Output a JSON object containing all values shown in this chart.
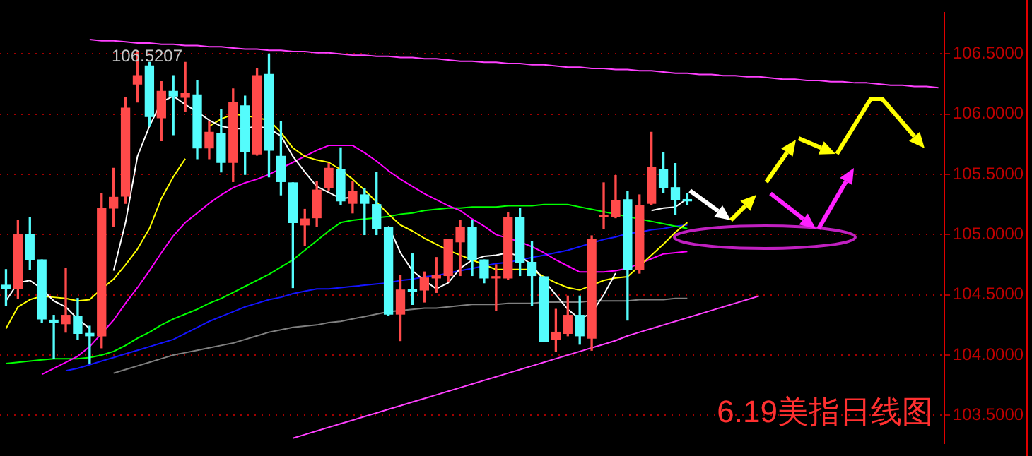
{
  "chart_data": {
    "type": "candlestick",
    "title": "6.19美指日线图",
    "categories": [
      null,
      null,
      null,
      null,
      null,
      null,
      null,
      null,
      null,
      null,
      null,
      null,
      null,
      null,
      null,
      null,
      null,
      null,
      null,
      null,
      null,
      null,
      null,
      null,
      null,
      null,
      null,
      null,
      null,
      null,
      null,
      null,
      null,
      null,
      null,
      null,
      null,
      null,
      null,
      null,
      null,
      null,
      null,
      null,
      null,
      null,
      null,
      null,
      null,
      null,
      null,
      null,
      null,
      null,
      null,
      null,
      null,
      null,
      null,
      null,
      null,
      null,
      null,
      null,
      null,
      null,
      null,
      null,
      null,
      null,
      null,
      null,
      null,
      null,
      null,
      null,
      null,
      null,
      null
    ],
    "ohlc": [
      [
        104.58,
        104.71,
        104.41,
        104.55
      ],
      [
        104.55,
        105.12,
        104.47,
        105.0
      ],
      [
        105.0,
        105.14,
        104.71,
        104.79
      ],
      [
        104.79,
        104.79,
        104.27,
        104.3
      ],
      [
        104.29,
        104.33,
        103.97,
        104.27
      ],
      [
        104.26,
        104.72,
        104.19,
        104.33
      ],
      [
        104.32,
        104.47,
        104.13,
        104.18
      ],
      [
        104.18,
        104.24,
        103.93,
        104.16
      ],
      [
        104.16,
        105.34,
        104.06,
        105.22
      ],
      [
        105.22,
        105.55,
        105.07,
        105.31
      ],
      [
        105.32,
        106.14,
        105.26,
        106.05
      ],
      [
        106.25,
        106.5207,
        106.1,
        106.32
      ],
      [
        106.4,
        106.43,
        105.9,
        105.98
      ],
      [
        105.97,
        106.27,
        105.78,
        106.19
      ],
      [
        106.19,
        106.32,
        105.83,
        106.15
      ],
      [
        106.14,
        106.43,
        106.02,
        106.17
      ],
      [
        106.16,
        106.28,
        105.63,
        105.72
      ],
      [
        105.72,
        105.94,
        105.63,
        105.85
      ],
      [
        105.84,
        106.04,
        105.52,
        105.6
      ],
      [
        105.6,
        106.21,
        105.44,
        106.1
      ],
      [
        106.07,
        106.15,
        105.5,
        105.69
      ],
      [
        105.67,
        106.38,
        105.66,
        106.32
      ],
      [
        106.33,
        106.5,
        105.48,
        105.7
      ],
      [
        105.65,
        105.94,
        105.33,
        105.44
      ],
      [
        105.43,
        105.43,
        104.56,
        105.1
      ],
      [
        105.08,
        105.21,
        104.91,
        105.13
      ],
      [
        105.14,
        105.44,
        105.07,
        105.37
      ],
      [
        105.39,
        105.59,
        105.37,
        105.55
      ],
      [
        105.54,
        105.72,
        105.25,
        105.28
      ],
      [
        105.26,
        105.44,
        105.18,
        105.36
      ],
      [
        105.33,
        105.38,
        105.0,
        105.26
      ],
      [
        105.25,
        105.52,
        105.0,
        105.05
      ],
      [
        105.06,
        105.06,
        104.33,
        104.34
      ],
      [
        104.34,
        104.66,
        104.12,
        104.54
      ],
      [
        104.54,
        104.84,
        104.42,
        104.53
      ],
      [
        104.54,
        104.69,
        104.44,
        104.64
      ],
      [
        104.64,
        104.81,
        104.52,
        104.66
      ],
      [
        104.66,
        104.96,
        104.61,
        104.96
      ],
      [
        104.94,
        105.12,
        104.66,
        105.06
      ],
      [
        105.06,
        105.12,
        104.66,
        104.79
      ],
      [
        104.79,
        104.79,
        104.6,
        104.64
      ],
      [
        104.64,
        104.75,
        104.37,
        104.65
      ],
      [
        104.64,
        105.18,
        104.63,
        105.14
      ],
      [
        105.14,
        105.22,
        104.66,
        104.77
      ],
      [
        104.77,
        104.94,
        104.41,
        104.66
      ],
      [
        104.65,
        104.65,
        104.11,
        104.11
      ],
      [
        104.13,
        104.38,
        104.03,
        104.19
      ],
      [
        104.18,
        104.49,
        104.16,
        104.33
      ],
      [
        104.33,
        104.49,
        104.09,
        104.16
      ],
      [
        104.14,
        104.99,
        104.04,
        104.96
      ],
      [
        105.15,
        105.43,
        105.05,
        105.16
      ],
      [
        105.15,
        105.49,
        105.14,
        105.28
      ],
      [
        105.29,
        105.36,
        104.29,
        104.71
      ],
      [
        104.71,
        105.33,
        104.68,
        105.24
      ],
      [
        105.26,
        105.85,
        105.25,
        105.56
      ],
      [
        105.54,
        105.68,
        105.35,
        105.39
      ],
      [
        105.39,
        105.59,
        105.17,
        105.29
      ],
      [
        105.29,
        105.34,
        105.25,
        105.28
      ],
      null,
      null,
      null,
      null,
      null,
      null,
      null,
      null,
      null,
      null,
      null,
      null,
      null,
      null,
      null,
      null,
      null,
      null,
      null,
      null,
      null
    ],
    "colors": [
      "#54fcfc",
      "#ff4a4a",
      "#54fcfc",
      "#54fcfc",
      "#54fcfc",
      "#ff4a4a",
      "#54fcfc",
      "#54fcfc",
      "#ff4a4a",
      "#ff4a4a",
      "#ff4a4a",
      "#ff4a4a",
      "#54fcfc",
      "#ff4a4a",
      "#54fcfc",
      "#ff4a4a",
      "#54fcfc",
      "#ff4a4a",
      "#54fcfc",
      "#ff4a4a",
      "#54fcfc",
      "#ff4a4a",
      "#54fcfc",
      "#54fcfc",
      "#54fcfc",
      "#ff4a4a",
      "#ff4a4a",
      "#ff4a4a",
      "#54fcfc",
      "#ff4a4a",
      "#54fcfc",
      "#54fcfc",
      "#54fcfc",
      "#ff4a4a",
      "#54fcfc",
      "#ff4a4a",
      "#ff4a4a",
      "#ff4a4a",
      "#ff4a4a",
      "#54fcfc",
      "#54fcfc",
      "#ff4a4a",
      "#ff4a4a",
      "#54fcfc",
      "#54fcfc",
      "#54fcfc",
      "#ff4a4a",
      "#ff4a4a",
      "#54fcfc",
      "#ff4a4a",
      "#ff4a4a",
      "#ff4a4a",
      "#54fcfc",
      "#ff4a4a",
      "#ff4a4a",
      "#54fcfc",
      "#54fcfc",
      "#54fcfc",
      null,
      null,
      null,
      null,
      null,
      null,
      null,
      null,
      null,
      null,
      null,
      null,
      null,
      null,
      null,
      null,
      null,
      null,
      null,
      null,
      null
    ],
    "series": [
      {
        "type": "line",
        "color": "#ffffff",
        "values": [
          104.45,
          104.6,
          104.62,
          104.55,
          104.45,
          104.4,
          104.3,
          104.22,
          null,
          104.7,
          105.1,
          105.65,
          105.9,
          106.1,
          106.15,
          106.08,
          106.02,
          105.95,
          105.9,
          105.88,
          105.88,
          105.9,
          105.88,
          105.82,
          105.65,
          105.52,
          105.4,
          105.35,
          105.3,
          105.31,
          null,
          null,
          105.07,
          104.85,
          104.7,
          104.62,
          104.55,
          104.6,
          104.72,
          104.79,
          104.82,
          104.83,
          104.85,
          104.82,
          104.75,
          104.62,
          104.5,
          104.38,
          104.3,
          104.35,
          104.5,
          104.68,
          null,
          null,
          105.2,
          105.22,
          105.23,
          105.3,
          null,
          null,
          null,
          null,
          null,
          null,
          null,
          null,
          null,
          null,
          null,
          null,
          null,
          null,
          null,
          null,
          null,
          null,
          null,
          null,
          null
        ]
      },
      {
        "type": "line",
        "color": "#ffff00",
        "values": [
          104.22,
          104.4,
          104.46,
          104.49,
          104.48,
          104.47,
          104.45,
          104.46,
          104.55,
          104.63,
          104.75,
          104.88,
          105.05,
          105.3,
          105.48,
          105.63,
          null,
          105.9,
          105.96,
          106.0,
          105.99,
          105.97,
          105.95,
          105.85,
          105.72,
          105.65,
          105.62,
          105.6,
          105.54,
          105.46,
          105.37,
          105.27,
          105.17,
          105.08,
          105.03,
          104.97,
          104.92,
          104.87,
          104.83,
          104.79,
          104.75,
          104.71,
          104.71,
          104.71,
          104.71,
          104.65,
          104.6,
          104.56,
          104.54,
          104.58,
          104.62,
          104.64,
          104.65,
          104.74,
          104.83,
          104.92,
          105.02,
          105.1,
          null,
          null,
          null,
          null,
          null,
          null,
          null,
          null,
          null,
          null,
          null,
          null,
          null,
          null,
          null,
          null,
          null,
          null,
          null,
          null,
          null
        ]
      },
      {
        "type": "line",
        "color": "#ff00ff",
        "values": [
          null,
          null,
          null,
          103.84,
          103.89,
          103.94,
          103.99,
          104.07,
          104.18,
          104.29,
          104.43,
          104.56,
          104.7,
          104.85,
          104.99,
          105.1,
          105.18,
          105.26,
          105.33,
          105.39,
          105.43,
          105.46,
          105.5,
          105.55,
          105.6,
          105.65,
          105.7,
          105.74,
          105.74,
          105.74,
          105.68,
          105.61,
          105.53,
          105.46,
          105.4,
          105.34,
          105.29,
          105.24,
          105.2,
          105.13,
          105.07,
          105.0,
          104.97,
          104.94,
          104.9,
          104.85,
          104.79,
          104.74,
          104.69,
          104.69,
          104.69,
          104.7,
          104.72,
          104.76,
          104.8,
          104.84,
          104.85,
          104.86,
          null,
          null,
          null,
          null,
          null,
          null,
          null,
          null,
          null,
          null,
          null,
          null,
          null,
          null,
          null,
          null,
          null,
          null,
          null,
          null,
          null
        ]
      },
      {
        "type": "line",
        "color": "#00ff00",
        "values": [
          103.93,
          103.94,
          103.95,
          103.96,
          103.97,
          103.97,
          103.97,
          103.98,
          104.0,
          104.03,
          104.08,
          104.14,
          104.19,
          104.25,
          104.3,
          104.34,
          104.38,
          104.43,
          104.47,
          104.52,
          104.57,
          104.62,
          104.67,
          104.73,
          104.79,
          104.87,
          104.95,
          105.03,
          105.1,
          105.12,
          105.13,
          105.14,
          105.15,
          105.17,
          105.18,
          105.2,
          105.21,
          105.22,
          105.22,
          105.23,
          105.23,
          105.23,
          105.24,
          105.24,
          105.24,
          105.25,
          105.25,
          105.25,
          105.23,
          105.21,
          105.19,
          105.17,
          105.15,
          105.13,
          105.11,
          105.09,
          105.07,
          105.05,
          null,
          null,
          null,
          null,
          null,
          null,
          null,
          null,
          null,
          null,
          null,
          null,
          null,
          null,
          null,
          null,
          null,
          null,
          null,
          null,
          null
        ]
      },
      {
        "type": "line",
        "color": "#1414ff",
        "values": [
          null,
          null,
          null,
          null,
          null,
          103.87,
          103.89,
          103.92,
          103.95,
          103.98,
          104.01,
          104.04,
          104.07,
          104.1,
          104.13,
          104.18,
          104.23,
          104.28,
          104.32,
          104.36,
          104.4,
          104.43,
          104.46,
          104.48,
          104.51,
          104.53,
          104.55,
          104.55,
          104.56,
          104.57,
          104.58,
          104.59,
          104.6,
          104.62,
          104.63,
          104.65,
          104.66,
          104.68,
          104.7,
          104.72,
          104.74,
          104.76,
          104.77,
          104.79,
          104.81,
          104.83,
          104.85,
          104.87,
          104.9,
          104.93,
          104.96,
          104.98,
          105.01,
          105.02,
          105.04,
          105.05,
          105.07,
          105.08,
          null,
          null,
          null,
          null,
          null,
          null,
          null,
          null,
          null,
          null,
          null,
          null,
          null,
          null,
          null,
          null,
          null,
          null,
          null,
          null,
          null
        ]
      },
      {
        "type": "line",
        "color": "#808080",
        "values": [
          null,
          null,
          null,
          null,
          null,
          null,
          null,
          null,
          null,
          103.85,
          103.88,
          103.91,
          103.94,
          103.97,
          104.0,
          104.02,
          104.04,
          104.06,
          104.08,
          104.1,
          104.13,
          104.16,
          104.19,
          104.21,
          104.23,
          104.24,
          104.25,
          104.27,
          104.28,
          104.3,
          104.32,
          104.34,
          104.36,
          104.37,
          104.38,
          104.39,
          104.39,
          104.4,
          104.41,
          104.42,
          104.42,
          104.42,
          104.43,
          104.43,
          104.43,
          104.44,
          104.44,
          104.44,
          104.44,
          104.45,
          104.45,
          104.45,
          104.45,
          104.46,
          104.46,
          104.46,
          104.47,
          104.47,
          null,
          null,
          null,
          null,
          null,
          null,
          null,
          null,
          null,
          null,
          null,
          null,
          null,
          null,
          null,
          null,
          null,
          null,
          null,
          null,
          null
        ]
      },
      {
        "type": "line",
        "color": "#ff40ff",
        "values": [
          null,
          null,
          null,
          null,
          null,
          null,
          null,
          106.62,
          106.61,
          106.61,
          106.6,
          106.59,
          106.59,
          106.58,
          106.58,
          106.57,
          106.57,
          106.56,
          106.56,
          106.55,
          106.54,
          106.54,
          106.53,
          106.53,
          106.52,
          106.52,
          106.51,
          106.51,
          106.5,
          106.49,
          106.49,
          106.48,
          106.48,
          106.47,
          106.47,
          106.46,
          106.46,
          106.45,
          106.44,
          106.44,
          106.43,
          106.43,
          106.42,
          106.42,
          106.41,
          106.41,
          106.4,
          106.39,
          106.39,
          106.38,
          106.38,
          106.37,
          106.37,
          106.36,
          106.36,
          106.35,
          106.34,
          106.34,
          106.33,
          106.33,
          106.32,
          106.32,
          106.31,
          106.31,
          106.3,
          106.29,
          106.29,
          106.28,
          106.28,
          106.27,
          106.27,
          106.26,
          106.26,
          106.25,
          106.24,
          106.24,
          106.23,
          106.23,
          106.22
        ]
      },
      {
        "type": "line",
        "color": "#ff40ff",
        "values": [
          null,
          null,
          null,
          null,
          null,
          null,
          null,
          null,
          null,
          null,
          null,
          null,
          null,
          null,
          null,
          null,
          null,
          null,
          null,
          null,
          null,
          null,
          null,
          null,
          103.31,
          103.34,
          103.37,
          103.4,
          103.43,
          103.46,
          103.49,
          103.52,
          103.55,
          103.58,
          103.61,
          103.64,
          103.67,
          103.7,
          103.73,
          103.76,
          103.79,
          103.82,
          103.85,
          103.88,
          103.91,
          103.94,
          103.97,
          104.0,
          104.03,
          104.06,
          104.09,
          104.12,
          104.16,
          104.19,
          104.22,
          104.25,
          104.28,
          104.31,
          104.34,
          104.37,
          104.4,
          104.43,
          104.46,
          104.49,
          null,
          null,
          null,
          null,
          null,
          null,
          null,
          null,
          null,
          null,
          null,
          null,
          null,
          null,
          null
        ]
      }
    ],
    "annotations": [
      "106.5207"
    ],
    "ylim": [
      103.27,
      106.84
    ],
    "yticks": [
      {
        "value": 103.5,
        "label": "103.5000"
      },
      {
        "value": 104,
        "label": "104.0000"
      },
      {
        "value": 104.5,
        "label": "104.5000"
      },
      {
        "value": 105,
        "label": "105.0000"
      },
      {
        "value": 105.5,
        "label": "105.5000"
      },
      {
        "value": 106,
        "label": "106.0000"
      },
      {
        "value": 106.5,
        "label": "106.5000"
      }
    ],
    "grid": "y",
    "tick_labels": "y"
  }
}
